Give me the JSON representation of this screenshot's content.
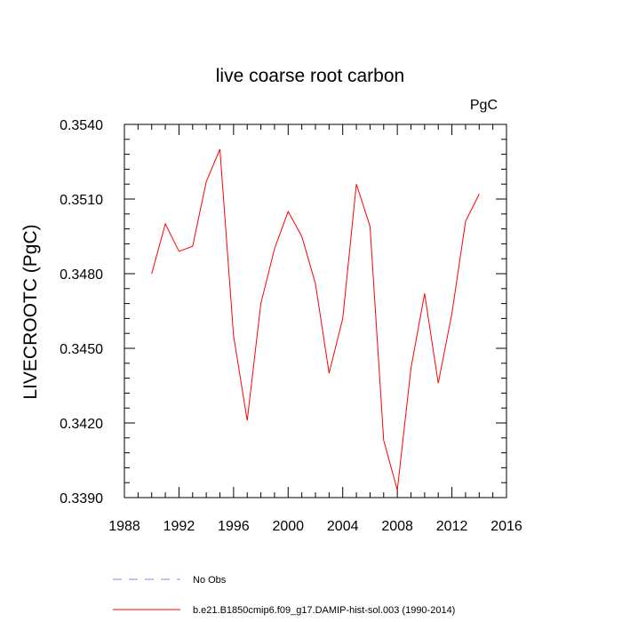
{
  "chart_data": {
    "type": "line",
    "title": "live coarse root carbon",
    "units_label": "PgC",
    "ylabel": "LIVECROOTC  (PgC)",
    "xlabel": "",
    "xlim": [
      1988,
      2016
    ],
    "ylim": [
      0.339,
      0.354
    ],
    "x_ticks": [
      "1988",
      "1992",
      "1996",
      "2000",
      "2004",
      "2008",
      "2012",
      "2016"
    ],
    "y_ticks": [
      "0.3390",
      "0.3420",
      "0.3450",
      "0.3480",
      "0.3510",
      "0.3540"
    ],
    "grid": false,
    "legend_placement": "bottom",
    "legend": [
      {
        "label": "No Obs",
        "color": "#8080ff",
        "style": "dashed"
      },
      {
        "label": "b.e21.B1850cmip6.f09_g17.DAMIP-hist-sol.003 (1990-2014)",
        "color": "#ff0000",
        "style": "solid"
      }
    ],
    "series": [
      {
        "name": "b.e21.B1850cmip6.f09_g17.DAMIP-hist-sol.003 (1990-2014)",
        "color": "#ff0000",
        "x": [
          1990,
          1991,
          1992,
          1993,
          1994,
          1995,
          1996,
          1997,
          1998,
          1999,
          2000,
          2001,
          2002,
          2003,
          2004,
          2005,
          2006,
          2007,
          2008,
          2009,
          2010,
          2011,
          2012,
          2013,
          2014
        ],
        "values": [
          0.348,
          0.35,
          0.3489,
          0.3491,
          0.3517,
          0.353,
          0.3455,
          0.3421,
          0.3468,
          0.349,
          0.3505,
          0.3495,
          0.3476,
          0.344,
          0.3462,
          0.3516,
          0.3499,
          0.3413,
          0.3393,
          0.3442,
          0.3472,
          0.3436,
          0.3464,
          0.3501,
          0.3512
        ]
      }
    ]
  }
}
